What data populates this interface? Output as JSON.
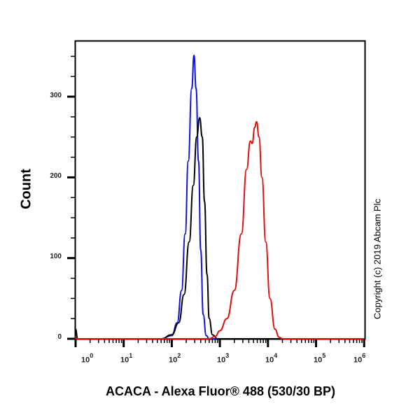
{
  "chart_data": {
    "type": "line",
    "title": "",
    "xlabel": "ACACA - Alexa Fluor® 488 (530/30 BP)",
    "ylabel": "Count",
    "x_scale": "log",
    "xlim": [
      1,
      1000000
    ],
    "ylim": [
      0,
      370
    ],
    "x_ticks": [
      "10^0",
      "10^1",
      "10^2",
      "10^3",
      "10^4",
      "10^5",
      "10^6"
    ],
    "y_ticks": [
      0,
      100,
      200,
      300
    ],
    "grid": false,
    "legend": null,
    "annotation": "Copyright (c) 2019 Abcam Plc",
    "series": [
      {
        "name": "blue",
        "color": "#1010e0",
        "points": [
          [
            1,
            0
          ],
          [
            60,
            0
          ],
          [
            100,
            4
          ],
          [
            130,
            20
          ],
          [
            160,
            60
          ],
          [
            190,
            130
          ],
          [
            220,
            220
          ],
          [
            260,
            310
          ],
          [
            290,
            351
          ],
          [
            320,
            310
          ],
          [
            360,
            220
          ],
          [
            400,
            110
          ],
          [
            450,
            30
          ],
          [
            520,
            4
          ],
          [
            600,
            0
          ],
          [
            1000000,
            0
          ]
        ]
      },
      {
        "name": "black",
        "color": "#000000",
        "points": [
          [
            1,
            12
          ],
          [
            1.1,
            0
          ],
          [
            60,
            0
          ],
          [
            100,
            5
          ],
          [
            140,
            20
          ],
          [
            180,
            55
          ],
          [
            230,
            120
          ],
          [
            280,
            190
          ],
          [
            330,
            250
          ],
          [
            380,
            274
          ],
          [
            430,
            250
          ],
          [
            480,
            170
          ],
          [
            540,
            80
          ],
          [
            600,
            25
          ],
          [
            700,
            5
          ],
          [
            900,
            0
          ],
          [
            1000000,
            0
          ]
        ]
      },
      {
        "name": "red",
        "color": "#e01010",
        "points": [
          [
            1,
            0
          ],
          [
            600,
            0
          ],
          [
            800,
            3
          ],
          [
            1000,
            10
          ],
          [
            1400,
            25
          ],
          [
            2000,
            60
          ],
          [
            2800,
            130
          ],
          [
            3600,
            210
          ],
          [
            4300,
            245
          ],
          [
            4700,
            242
          ],
          [
            5300,
            262
          ],
          [
            5800,
            269
          ],
          [
            6500,
            250
          ],
          [
            7500,
            200
          ],
          [
            9000,
            120
          ],
          [
            11000,
            50
          ],
          [
            14000,
            12
          ],
          [
            17000,
            2
          ],
          [
            20000,
            0
          ],
          [
            1000000,
            0
          ]
        ]
      }
    ]
  },
  "labels": {
    "ylabel": "Count",
    "xlabel": "ACACA - Alexa Fluor® 488 (530/30 BP)",
    "copyright": "Copyright (c) 2019 Abcam Plc",
    "y_ticks": [
      "0",
      "100",
      "200",
      "300"
    ],
    "x_tick_base": "10",
    "x_tick_exps": [
      "0",
      "1",
      "2",
      "3",
      "4",
      "5",
      "6"
    ]
  }
}
